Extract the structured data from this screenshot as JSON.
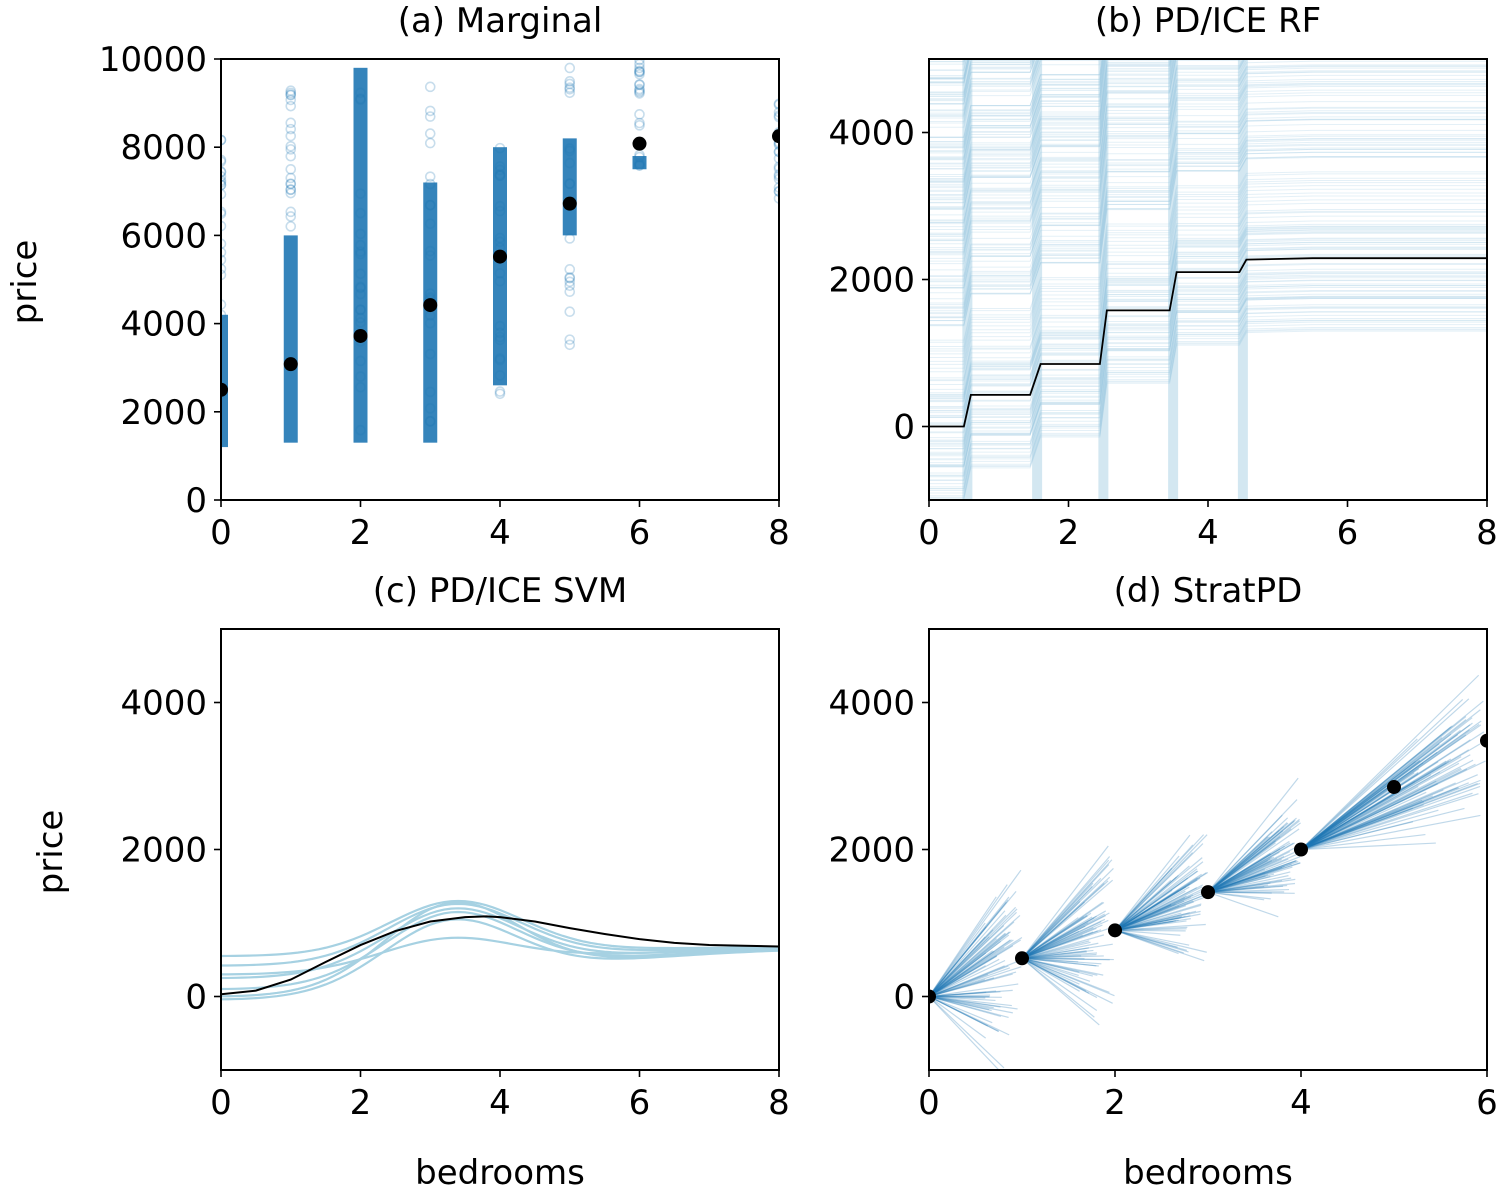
{
  "colors": {
    "point_blue": "#1f77b4",
    "ice_light": "#9ecae1",
    "ice_svm": "#a6d1e2",
    "mean_black": "#000000",
    "axes": "#000000"
  },
  "chart_data": [
    {
      "id": "a",
      "type": "scatter",
      "title": "(a) Marginal",
      "xlabel": "",
      "ylabel": "price",
      "xlim": [
        0,
        8
      ],
      "ylim": [
        0,
        10000
      ],
      "xticks": [
        "0",
        "2",
        "4",
        "6",
        "8"
      ],
      "yticks": [
        "0",
        "2000",
        "4000",
        "6000",
        "8000",
        "10000"
      ],
      "point_columns": [
        {
          "x": 0,
          "dense": [
            1200,
            4200
          ],
          "sparse": [
            4200,
            8500
          ]
        },
        {
          "x": 1,
          "dense": [
            1300,
            6000
          ],
          "sparse": [
            6000,
            9500
          ]
        },
        {
          "x": 2,
          "dense": [
            1300,
            9800
          ],
          "sparse": [
            1100,
            9900
          ]
        },
        {
          "x": 3,
          "dense": [
            1300,
            7200
          ],
          "sparse": [
            1100,
            9900
          ]
        },
        {
          "x": 4,
          "dense": [
            2600,
            8000
          ],
          "sparse": [
            2400,
            8000
          ]
        },
        {
          "x": 5,
          "dense": [
            6000,
            8200
          ],
          "sparse": [
            3500,
            10000
          ]
        },
        {
          "x": 6,
          "dense": [
            7500,
            7800
          ],
          "sparse": [
            7500,
            10000
          ]
        },
        {
          "x": 8,
          "dense": [],
          "sparse": [
            6500,
            9000
          ]
        }
      ],
      "series": [
        {
          "x": [
            0,
            1,
            2,
            3,
            4,
            5,
            6,
            8
          ],
          "values": [
            2500,
            3080,
            3720,
            4420,
            5520,
            6720,
            8080,
            8250
          ]
        }
      ]
    },
    {
      "id": "b",
      "type": "line",
      "title": "(b) PD/ICE RF",
      "xlabel": "",
      "ylabel": "",
      "xlim": [
        0,
        8
      ],
      "ylim": [
        -1000,
        5000
      ],
      "xticks": [
        "0",
        "2",
        "4",
        "6",
        "8"
      ],
      "yticks": [
        "0",
        "2000",
        "4000"
      ],
      "series": [
        {
          "x": [
            0,
            0.5,
            0.6,
            1.45,
            1.6,
            2.45,
            2.55,
            3.45,
            3.55,
            4.45,
            4.55,
            5.5,
            8
          ],
          "values": [
            0,
            0,
            430,
            430,
            850,
            850,
            1580,
            1580,
            2100,
            2100,
            2270,
            2290,
            2290
          ]
        }
      ]
    },
    {
      "id": "c",
      "type": "line",
      "title": "(c) PD/ICE SVM",
      "xlabel": "bedrooms",
      "ylabel": "price",
      "xlim": [
        0,
        8
      ],
      "ylim": [
        -1000,
        5000
      ],
      "xticks": [
        "0",
        "2",
        "4",
        "6",
        "8"
      ],
      "yticks": [
        "0",
        "2000",
        "4000"
      ],
      "ice_curves": [
        {
          "start": 550,
          "peak": 1300
        },
        {
          "start": 420,
          "peak": 1260
        },
        {
          "start": 250,
          "peak": 1200
        },
        {
          "start": 100,
          "peak": 1150
        },
        {
          "start": 0,
          "peak": 1280
        },
        {
          "start": -40,
          "peak": 1050
        },
        {
          "start": 300,
          "peak": 800
        }
      ],
      "series": [
        {
          "x": [
            0,
            0.5,
            1,
            1.5,
            2,
            2.5,
            3,
            3.5,
            3.8,
            4,
            4.5,
            5,
            5.5,
            6,
            6.5,
            7,
            7.5,
            8
          ],
          "values": [
            30,
            80,
            230,
            470,
            700,
            890,
            1020,
            1080,
            1090,
            1080,
            1020,
            930,
            850,
            780,
            730,
            700,
            690,
            680
          ]
        }
      ]
    },
    {
      "id": "d",
      "type": "line",
      "title": "(d) StratPD",
      "xlabel": "bedrooms",
      "ylabel": "",
      "xlim": [
        0,
        6
      ],
      "ylim": [
        -1000,
        5000
      ],
      "xticks": [
        "0",
        "2",
        "4",
        "6"
      ],
      "yticks": [
        "0",
        "2000",
        "4000"
      ],
      "segment_slopes": [
        {
          "x0": 0,
          "x1": 1,
          "median": 500,
          "spread": 1300
        },
        {
          "x0": 1,
          "x1": 2,
          "median": 420,
          "spread": 1100
        },
        {
          "x0": 2,
          "x1": 3,
          "median": 520,
          "spread": 900
        },
        {
          "x0": 3,
          "x1": 4,
          "median": 580,
          "spread": 800
        },
        {
          "x0": 4,
          "x1": 6,
          "median": 730,
          "spread": 500
        }
      ],
      "series": [
        {
          "x": [
            0,
            1,
            2,
            3,
            4,
            5,
            6
          ],
          "values": [
            0,
            520,
            900,
            1420,
            2000,
            2850,
            3480
          ]
        }
      ]
    }
  ]
}
